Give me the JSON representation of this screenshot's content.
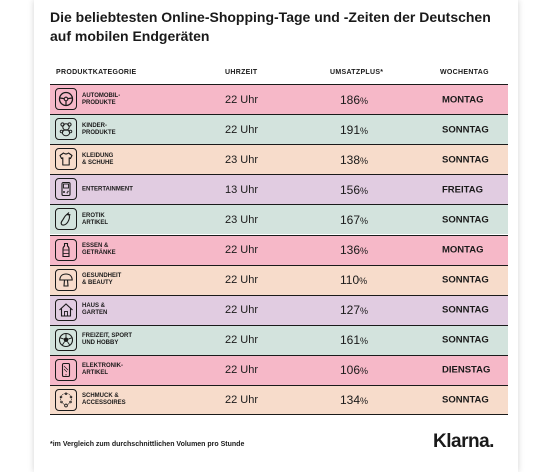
{
  "title": "Die beliebtesten Online-Shopping-Tage und -Zeiten der Deutschen auf mobilen Endgeräten",
  "headers": {
    "category": "PRODUKTKATEGORIE",
    "time": "UHRZEIT",
    "increase": "UMSATZPLUS*",
    "weekday": "WOCHENTAG"
  },
  "colors": {
    "pink": "#f6b8c8",
    "mint": "#d3e3dd",
    "peach": "#f7dccb",
    "lilac": "#e1cce1"
  },
  "footnote": "*im Vergleich zum durchschnittlichen Volumen pro Stunde",
  "brand": "Klarna.",
  "chart_data": {
    "type": "table",
    "columns": [
      "PRODUKTKATEGORIE",
      "UHRZEIT",
      "UMSATZPLUS*",
      "WOCHENTAG"
    ],
    "rows": [
      {
        "category": "AUTOMOBIL-\nPRODUKTE",
        "time": "22 Uhr",
        "increase": "186",
        "unit": "%",
        "weekday": "MONTAG",
        "color": "#f6b8c8",
        "icon": "steering-wheel-icon"
      },
      {
        "category": "KINDER-\nPRODUKTE",
        "time": "22 Uhr",
        "increase": "191",
        "unit": "%",
        "weekday": "SONNTAG",
        "color": "#d3e3dd",
        "icon": "teddy-bear-icon"
      },
      {
        "category": "KLEIDUNG\n& SCHUHE",
        "time": "23 Uhr",
        "increase": "138",
        "unit": "%",
        "weekday": "SONNTAG",
        "color": "#f7dccb",
        "icon": "t-shirt-icon"
      },
      {
        "category": "ENTERTAINMENT",
        "time": "13 Uhr",
        "increase": "156",
        "unit": "%",
        "weekday": "FREITAG",
        "color": "#e1cce1",
        "icon": "gameboy-icon"
      },
      {
        "category": "EROTIK\nARTIKEL",
        "time": "23 Uhr",
        "increase": "167",
        "unit": "%",
        "weekday": "SONNTAG",
        "color": "#d3e3dd",
        "icon": "eggplant-icon"
      },
      {
        "category": "ESSEN &\nGETRÄNKE",
        "time": "22 Uhr",
        "increase": "136",
        "unit": "%",
        "weekday": "MONTAG",
        "color": "#f6b8c8",
        "icon": "bottle-icon"
      },
      {
        "category": "GESUNDHEIT\n& BEAUTY",
        "time": "22 Uhr",
        "increase": "110",
        "unit": "%",
        "weekday": "SONNTAG",
        "color": "#f7dccb",
        "icon": "mushroom-icon"
      },
      {
        "category": "HAUS &\nGARTEN",
        "time": "22 Uhr",
        "increase": "127",
        "unit": "%",
        "weekday": "SONNTAG",
        "color": "#e1cce1",
        "icon": "house-icon"
      },
      {
        "category": "FREIZEIT, SPORT\nUND HOBBY",
        "time": "22 Uhr",
        "increase": "161",
        "unit": "%",
        "weekday": "SONNTAG",
        "color": "#d3e3dd",
        "icon": "football-icon"
      },
      {
        "category": "ELEKTRONIK-\nARTIKEL",
        "time": "22 Uhr",
        "increase": "106",
        "unit": "%",
        "weekday": "DIENSTAG",
        "color": "#f6b8c8",
        "icon": "smartphone-icon"
      },
      {
        "category": "SCHMUCK &\nACCESSOIRES",
        "time": "22 Uhr",
        "increase": "134",
        "unit": "%",
        "weekday": "SONNTAG",
        "color": "#f7dccb",
        "icon": "necklace-icon"
      }
    ]
  }
}
